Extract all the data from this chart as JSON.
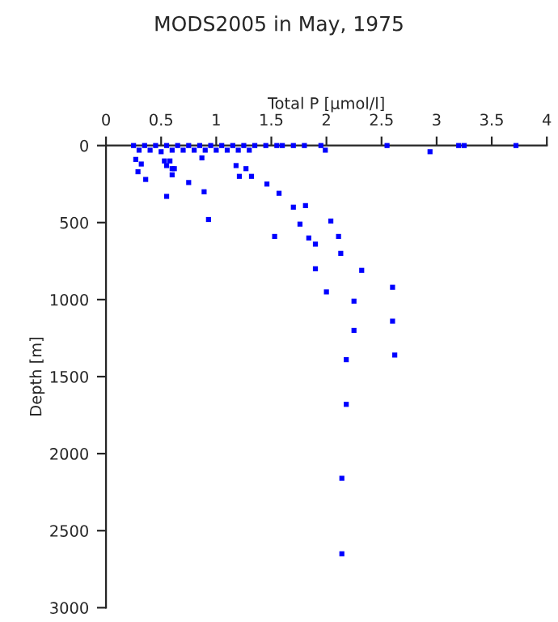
{
  "chart_data": {
    "type": "scatter",
    "title": "MODS2005 in May, 1975",
    "xlabel": "Total P [µmol/l]",
    "ylabel": "Depth [m]",
    "xlim": [
      0,
      4
    ],
    "xticks": [
      0,
      0.5,
      1,
      1.5,
      2,
      2.5,
      3,
      3.5,
      4
    ],
    "ylim": [
      3000,
      0
    ],
    "yticks": [
      0,
      500,
      1000,
      1500,
      2000,
      2500,
      3000
    ],
    "grid": false,
    "marker": "square",
    "series": [
      {
        "color": "#0000ff",
        "x": [
          0.25,
          0.35,
          0.45,
          0.55,
          0.65,
          0.75,
          0.85,
          0.95,
          1.05,
          1.15,
          1.25,
          1.35,
          1.45,
          1.55,
          1.6,
          1.7,
          1.8,
          1.95,
          2.55,
          3.2,
          3.25,
          3.72,
          0.3,
          0.4,
          0.5,
          0.6,
          0.7,
          0.8,
          0.9,
          1.0,
          1.1,
          1.2,
          1.3,
          0.27,
          0.29,
          0.32,
          0.36,
          0.53,
          0.55,
          0.58,
          0.6,
          0.6,
          0.62,
          0.55,
          0.75,
          0.89,
          0.93,
          0.87,
          1.18,
          1.21,
          1.27,
          1.32,
          1.46,
          1.57,
          1.7,
          1.81,
          1.76,
          2.04,
          1.53,
          1.84,
          1.9,
          2.11,
          2.13,
          1.9,
          2.32,
          2.94,
          1.99,
          2.6,
          2.0,
          2.25,
          2.6,
          2.25,
          2.62,
          2.18,
          2.18,
          2.14,
          2.14
        ],
        "values": [
          0,
          0,
          0,
          0,
          0,
          0,
          0,
          0,
          0,
          0,
          0,
          0,
          0,
          0,
          0,
          0,
          0,
          0,
          0,
          0,
          0,
          0,
          30,
          30,
          40,
          30,
          30,
          30,
          30,
          30,
          30,
          30,
          30,
          90,
          170,
          120,
          220,
          100,
          130,
          100,
          150,
          190,
          150,
          330,
          240,
          300,
          480,
          80,
          130,
          200,
          150,
          200,
          250,
          310,
          400,
          390,
          510,
          490,
          590,
          600,
          640,
          590,
          700,
          800,
          810,
          40,
          30,
          920,
          950,
          1010,
          1140,
          1200,
          1360,
          1390,
          1680,
          2160,
          2650
        ]
      }
    ]
  }
}
